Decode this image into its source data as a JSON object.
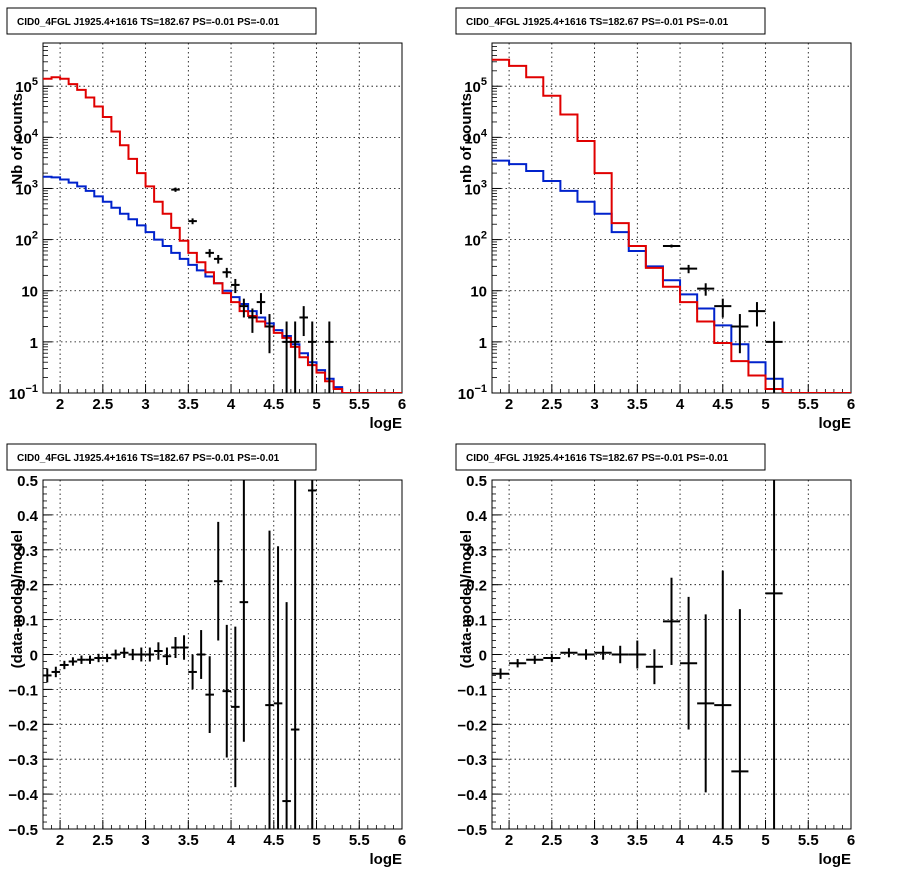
{
  "colors": {
    "data": "#000000",
    "model_total": "#e00000",
    "model_component": "#0022cc",
    "grid": "#000000"
  },
  "chart_data": [
    {
      "type": "line",
      "title": "CID0_4FGL J1925.4+1616 TS=182.67 PS=-0.01 PS=-0.01",
      "xlabel": "logE",
      "ylabel": "Nb of counts",
      "xlim": [
        1.8,
        6.0
      ],
      "ylim": [
        0.1,
        700000
      ],
      "yscale": "log",
      "grid": true,
      "x_ticks": [
        "2",
        "2.5",
        "3",
        "3.5",
        "4",
        "4.5",
        "5",
        "5.5",
        "6"
      ],
      "y_ticks": [
        {
          "v": 0.1,
          "b": "10",
          "e": "−1"
        },
        {
          "v": 1,
          "b": "1",
          "e": ""
        },
        {
          "v": 10,
          "b": "10",
          "e": ""
        },
        {
          "v": 100,
          "b": "10",
          "e": "2"
        },
        {
          "v": 1000,
          "b": "10",
          "e": "3"
        },
        {
          "v": 10000,
          "b": "10",
          "e": "4"
        },
        {
          "v": 100000,
          "b": "10",
          "e": "5"
        }
      ],
      "bin_edges": [
        1.8,
        1.9,
        2.0,
        2.1,
        2.2,
        2.3,
        2.4,
        2.5,
        2.6,
        2.7,
        2.8,
        2.9,
        3.0,
        3.1,
        3.2,
        3.3,
        3.4,
        3.5,
        3.6,
        3.7,
        3.8,
        3.9,
        4.0,
        4.1,
        4.2,
        4.3,
        4.4,
        4.5,
        4.6,
        4.7,
        4.8,
        4.9,
        5.0,
        5.1,
        5.2,
        5.3,
        5.4,
        5.5,
        5.6,
        5.7,
        5.8,
        5.9,
        6.0
      ],
      "series": [
        {
          "kind": "model_total",
          "values": [
            140000,
            150000,
            140000,
            110000,
            85000,
            60000,
            40000,
            25000,
            13000,
            7000,
            3800,
            2000,
            1100,
            550,
            320,
            170,
            95,
            55,
            36,
            23,
            14,
            9,
            6,
            4,
            3.2,
            2.5,
            2,
            1.5,
            1.2,
            0.8,
            0.5,
            0.35,
            0.25,
            0.17,
            0.12,
            0.1,
            0.1,
            0.1,
            0.1,
            0.1,
            0.1,
            0.1
          ]
        },
        {
          "kind": "model_component",
          "values": [
            1700,
            1650,
            1500,
            1300,
            1100,
            900,
            700,
            550,
            420,
            320,
            250,
            190,
            140,
            100,
            75,
            55,
            42,
            32,
            25,
            19,
            14,
            10,
            7.5,
            5.5,
            4,
            3,
            2.3,
            1.7,
            1.3,
            0.9,
            0.6,
            0.4,
            0.28,
            0.19,
            0.13,
            0.1,
            0.1,
            0.1,
            0.1,
            0.1,
            0.1,
            0.1
          ]
        },
        {
          "kind": "data",
          "points": [
            {
              "x": 3.35,
              "y": 950,
              "lo": 860,
              "hi": 1040
            },
            {
              "x": 3.55,
              "y": 230,
              "lo": 200,
              "hi": 260
            },
            {
              "x": 3.75,
              "y": 55,
              "lo": 45,
              "hi": 65
            },
            {
              "x": 3.85,
              "y": 42,
              "lo": 34,
              "hi": 50
            },
            {
              "x": 3.95,
              "y": 23,
              "lo": 18,
              "hi": 28
            },
            {
              "x": 4.05,
              "y": 13,
              "lo": 9,
              "hi": 17
            },
            {
              "x": 4.15,
              "y": 5,
              "lo": 3,
              "hi": 7
            },
            {
              "x": 4.25,
              "y": 3,
              "lo": 1.5,
              "hi": 4.5
            },
            {
              "x": 4.35,
              "y": 6,
              "lo": 3.5,
              "hi": 9
            },
            {
              "x": 4.45,
              "y": 2,
              "lo": 0.6,
              "hi": 3.5
            },
            {
              "x": 4.65,
              "y": 1,
              "lo": 0.1,
              "hi": 2.5
            },
            {
              "x": 4.75,
              "y": 1,
              "lo": 0.1,
              "hi": 2.5
            },
            {
              "x": 4.85,
              "y": 3,
              "lo": 1.3,
              "hi": 5
            },
            {
              "x": 4.95,
              "y": 1,
              "lo": 0.1,
              "hi": 2.5
            },
            {
              "x": 5.15,
              "y": 1,
              "lo": 0.1,
              "hi": 2.5
            }
          ]
        }
      ]
    },
    {
      "type": "line",
      "title": "CID0_4FGL J1925.4+1616 TS=182.67 PS=-0.01 PS=-0.01",
      "xlabel": "logE",
      "ylabel": "nb of counts",
      "xlim": [
        1.8,
        6.0
      ],
      "ylim": [
        0.1,
        700000
      ],
      "yscale": "log",
      "grid": true,
      "x_ticks": [
        "2",
        "2.5",
        "3",
        "3.5",
        "4",
        "4.5",
        "5",
        "5.5",
        "6"
      ],
      "y_ticks": [
        {
          "v": 0.1,
          "b": "10",
          "e": "−1"
        },
        {
          "v": 1,
          "b": "1",
          "e": ""
        },
        {
          "v": 10,
          "b": "10",
          "e": ""
        },
        {
          "v": 100,
          "b": "10",
          "e": "2"
        },
        {
          "v": 1000,
          "b": "10",
          "e": "3"
        },
        {
          "v": 10000,
          "b": "10",
          "e": "4"
        },
        {
          "v": 100000,
          "b": "10",
          "e": "5"
        }
      ],
      "bin_edges": [
        1.8,
        2.0,
        2.2,
        2.4,
        2.6,
        2.8,
        3.0,
        3.2,
        3.4,
        3.6,
        3.8,
        4.0,
        4.2,
        4.4,
        4.6,
        4.8,
        5.0,
        5.2,
        5.4,
        5.6,
        5.8,
        6.0
      ],
      "series": [
        {
          "kind": "model_total",
          "values": [
            330000,
            250000,
            150000,
            65000,
            28000,
            8500,
            2000,
            210,
            75,
            28,
            12,
            6,
            2.5,
            0.95,
            0.42,
            0.22,
            0.12,
            0.1,
            0.1,
            0.1,
            0.1
          ]
        },
        {
          "kind": "model_component",
          "values": [
            3500,
            3000,
            2200,
            1400,
            900,
            550,
            320,
            140,
            60,
            30,
            16,
            8.5,
            4.5,
            2.1,
            0.9,
            0.4,
            0.19,
            0.1,
            0.1,
            0.1,
            0.1
          ]
        },
        {
          "kind": "data",
          "points": [
            {
              "x": 3.9,
              "y": 75,
              "lo": 70,
              "hi": 80
            },
            {
              "x": 4.1,
              "y": 27,
              "lo": 22,
              "hi": 32
            },
            {
              "x": 4.3,
              "y": 11,
              "lo": 8,
              "hi": 14
            },
            {
              "x": 4.5,
              "y": 5,
              "lo": 3,
              "hi": 7
            },
            {
              "x": 4.7,
              "y": 2,
              "lo": 0.6,
              "hi": 3.5
            },
            {
              "x": 4.9,
              "y": 4,
              "lo": 2,
              "hi": 6
            },
            {
              "x": 5.1,
              "y": 1,
              "lo": 0.1,
              "hi": 2.5
            }
          ]
        }
      ]
    },
    {
      "type": "scatter",
      "title": "CID0_4FGL J1925.4+1616 TS=182.67 PS=-0.01 PS=-0.01",
      "xlabel": "logE",
      "ylabel": "(data-model)/model",
      "xlim": [
        1.8,
        6.0
      ],
      "ylim": [
        -0.5,
        0.5
      ],
      "grid": true,
      "x_ticks": [
        "2",
        "2.5",
        "3",
        "3.5",
        "4",
        "4.5",
        "5",
        "5.5",
        "6"
      ],
      "y_ticks": [
        "−0.5",
        "−0.4",
        "−0.3",
        "−0.2",
        "−0.1",
        "0",
        "0.1",
        "0.2",
        "0.3",
        "0.4",
        "0.5"
      ],
      "bin_width": 0.1,
      "points": [
        {
          "x": 1.85,
          "y": -0.06,
          "err": 0.02
        },
        {
          "x": 1.95,
          "y": -0.05,
          "err": 0.015
        },
        {
          "x": 2.05,
          "y": -0.03,
          "err": 0.012
        },
        {
          "x": 2.15,
          "y": -0.02,
          "err": 0.012
        },
        {
          "x": 2.25,
          "y": -0.015,
          "err": 0.012
        },
        {
          "x": 2.35,
          "y": -0.015,
          "err": 0.012
        },
        {
          "x": 2.45,
          "y": -0.01,
          "err": 0.012
        },
        {
          "x": 2.55,
          "y": -0.01,
          "err": 0.012
        },
        {
          "x": 2.65,
          "y": 0.0,
          "err": 0.014
        },
        {
          "x": 2.75,
          "y": 0.005,
          "err": 0.015
        },
        {
          "x": 2.85,
          "y": 0.0,
          "err": 0.016
        },
        {
          "x": 2.95,
          "y": 0.0,
          "err": 0.02
        },
        {
          "x": 3.05,
          "y": 0.0,
          "err": 0.02
        },
        {
          "x": 3.15,
          "y": 0.01,
          "err": 0.025
        },
        {
          "x": 3.25,
          "y": -0.005,
          "err": 0.025
        },
        {
          "x": 3.35,
          "y": 0.02,
          "err": 0.03
        },
        {
          "x": 3.45,
          "y": 0.02,
          "err": 0.035
        },
        {
          "x": 3.55,
          "y": -0.05,
          "err": 0.05
        },
        {
          "x": 3.65,
          "y": 0.0,
          "err": 0.07
        },
        {
          "x": 3.75,
          "y": -0.115,
          "err": 0.11
        },
        {
          "x": 3.85,
          "y": 0.21,
          "err": 0.17
        },
        {
          "x": 3.95,
          "y": -0.105,
          "err": 0.19
        },
        {
          "x": 4.05,
          "y": -0.15,
          "err": 0.23
        },
        {
          "x": 4.15,
          "y": 0.15,
          "err": 0.4
        },
        {
          "x": 4.45,
          "y": -0.145,
          "err": 0.5
        },
        {
          "x": 4.55,
          "y": -0.14,
          "err": 0.45
        },
        {
          "x": 4.65,
          "y": -0.42,
          "err": 0.57
        },
        {
          "x": 4.75,
          "y": -0.215,
          "err": 0.8
        },
        {
          "x": 4.95,
          "y": 0.47,
          "err": 1.0
        }
      ]
    },
    {
      "type": "scatter",
      "title": "CID0_4FGL J1925.4+1616 TS=182.67 PS=-0.01 PS=-0.01",
      "xlabel": "logE",
      "ylabel": "(data-model)/model",
      "xlim": [
        1.8,
        6.0
      ],
      "ylim": [
        -0.5,
        0.5
      ],
      "grid": true,
      "x_ticks": [
        "2",
        "2.5",
        "3",
        "3.5",
        "4",
        "4.5",
        "5",
        "5.5",
        "6"
      ],
      "y_ticks": [
        "−0.5",
        "−0.4",
        "−0.3",
        "−0.2",
        "−0.1",
        "0",
        "0.1",
        "0.2",
        "0.3",
        "0.4",
        "0.5"
      ],
      "bin_width": 0.2,
      "points": [
        {
          "x": 1.9,
          "y": -0.055,
          "err": 0.015
        },
        {
          "x": 2.1,
          "y": -0.025,
          "err": 0.012
        },
        {
          "x": 2.3,
          "y": -0.015,
          "err": 0.012
        },
        {
          "x": 2.5,
          "y": -0.01,
          "err": 0.012
        },
        {
          "x": 2.7,
          "y": 0.005,
          "err": 0.013
        },
        {
          "x": 2.9,
          "y": 0.0,
          "err": 0.015
        },
        {
          "x": 3.1,
          "y": 0.005,
          "err": 0.02
        },
        {
          "x": 3.3,
          "y": 0.0,
          "err": 0.025
        },
        {
          "x": 3.5,
          "y": 0.0,
          "err": 0.04
        },
        {
          "x": 3.7,
          "y": -0.035,
          "err": 0.05
        },
        {
          "x": 3.9,
          "y": 0.095,
          "err": 0.125
        },
        {
          "x": 4.1,
          "y": -0.025,
          "err": 0.19
        },
        {
          "x": 4.3,
          "y": -0.14,
          "err": 0.255
        },
        {
          "x": 4.5,
          "y": -0.145,
          "err": 0.385
        },
        {
          "x": 4.7,
          "y": -0.335,
          "err": 0.465
        },
        {
          "x": 5.1,
          "y": 0.175,
          "err": 0.83
        }
      ]
    }
  ]
}
